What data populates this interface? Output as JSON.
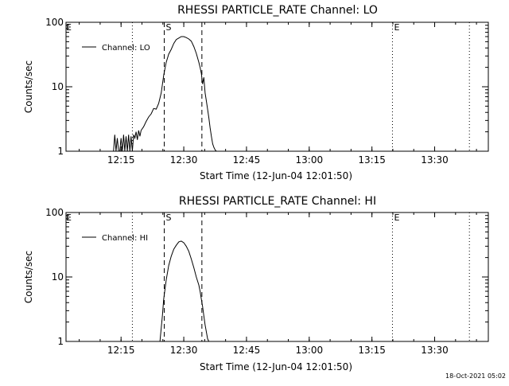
{
  "chart_data": [
    {
      "type": "line",
      "title": "RHESSI PARTICLE_RATE Channel: LO",
      "xlabel": "Start Time (12-Jun-04 12:01:50)",
      "ylabel": "Counts/sec",
      "yscale": "log",
      "ylim": [
        1,
        100
      ],
      "xlim": [
        12.0306,
        13.7139
      ],
      "x_ticks": [
        {
          "v": 12.25,
          "label": "12:15"
        },
        {
          "v": 12.5,
          "label": "12:30"
        },
        {
          "v": 12.75,
          "label": "12:45"
        },
        {
          "v": 13.0,
          "label": "13:00"
        },
        {
          "v": 13.25,
          "label": "13:15"
        },
        {
          "v": 13.5,
          "label": "13:30"
        }
      ],
      "y_ticks": [
        {
          "v": 1,
          "label": "1"
        },
        {
          "v": 10,
          "label": "10"
        },
        {
          "v": 100,
          "label": "100"
        }
      ],
      "legend": {
        "position": "top-left",
        "label": "Channel: LO"
      },
      "markers": [
        {
          "x": 12.2951,
          "style": "dotted",
          "label": ""
        },
        {
          "x": 12.4222,
          "style": "dashed",
          "label": "S"
        },
        {
          "x": 12.5722,
          "style": "dashed",
          "label": ""
        },
        {
          "x": 13.3318,
          "style": "dotted",
          "label": "E"
        },
        {
          "x": 13.6385,
          "style": "dotted",
          "label": ""
        },
        {
          "x": 12.0306,
          "style": "none",
          "label": "E"
        }
      ],
      "series": [
        {
          "name": "Channel: LO",
          "x": [
            12.22,
            12.225,
            12.23,
            12.235,
            12.24,
            12.245,
            12.25,
            12.255,
            12.26,
            12.265,
            12.27,
            12.275,
            12.28,
            12.285,
            12.29,
            12.295,
            12.3,
            12.305,
            12.31,
            12.315,
            12.32,
            12.325,
            12.33,
            12.34,
            12.35,
            12.36,
            12.37,
            12.38,
            12.39,
            12.4,
            12.41,
            12.42,
            12.43,
            12.44,
            12.45,
            12.46,
            12.47,
            12.48,
            12.49,
            12.5,
            12.51,
            12.52,
            12.53,
            12.54,
            12.55,
            12.56,
            12.565,
            12.57,
            12.575,
            12.58,
            12.585,
            12.59,
            12.595,
            12.6,
            12.605,
            12.61,
            12.615,
            12.62,
            12.625,
            12.63
          ],
          "y": [
            1,
            1.8,
            1,
            1.6,
            1,
            1,
            1.6,
            1,
            1.8,
            1,
            1.7,
            1,
            1.8,
            1,
            1.7,
            1,
            1.8,
            1.6,
            2,
            1.5,
            2.1,
            1.7,
            2.1,
            2.4,
            2.9,
            3.4,
            3.8,
            4.6,
            4.5,
            5.5,
            8,
            15,
            24,
            32,
            38,
            47,
            54,
            57,
            60,
            60,
            58,
            55,
            51,
            42,
            33,
            24,
            20,
            16,
            11,
            14,
            8,
            6,
            4.5,
            3.3,
            2.3,
            1.7,
            1.3,
            1.15,
            1.05,
            1
          ]
        }
      ]
    },
    {
      "type": "line",
      "title": "RHESSI PARTICLE_RATE Channel: HI",
      "xlabel": "Start Time (12-Jun-04 12:01:50)",
      "ylabel": "Counts/sec",
      "yscale": "log",
      "ylim": [
        1,
        100
      ],
      "xlim": [
        12.0306,
        13.7139
      ],
      "x_ticks": [
        {
          "v": 12.25,
          "label": "12:15"
        },
        {
          "v": 12.5,
          "label": "12:30"
        },
        {
          "v": 12.75,
          "label": "12:45"
        },
        {
          "v": 13.0,
          "label": "13:00"
        },
        {
          "v": 13.25,
          "label": "13:15"
        },
        {
          "v": 13.5,
          "label": "13:30"
        }
      ],
      "y_ticks": [
        {
          "v": 1,
          "label": "1"
        },
        {
          "v": 10,
          "label": "10"
        },
        {
          "v": 100,
          "label": "100"
        }
      ],
      "legend": {
        "position": "top-left",
        "label": "Channel: HI"
      },
      "markers": [
        {
          "x": 12.2951,
          "style": "dotted",
          "label": ""
        },
        {
          "x": 12.4222,
          "style": "dashed",
          "label": "S"
        },
        {
          "x": 12.5722,
          "style": "dashed",
          "label": ""
        },
        {
          "x": 13.3318,
          "style": "dotted",
          "label": "E"
        },
        {
          "x": 13.6385,
          "style": "dotted",
          "label": ""
        },
        {
          "x": 12.0306,
          "style": "none",
          "label": "E"
        }
      ],
      "series": [
        {
          "name": "Channel: HI",
          "x": [
            12.405,
            12.41,
            12.415,
            12.42,
            12.43,
            12.44,
            12.45,
            12.46,
            12.47,
            12.48,
            12.49,
            12.5,
            12.51,
            12.52,
            12.53,
            12.54,
            12.55,
            12.56,
            12.565,
            12.57,
            12.575,
            12.58,
            12.585,
            12.59,
            12.595,
            12.6
          ],
          "y": [
            1,
            1.6,
            2.6,
            4.5,
            9,
            15,
            21,
            27,
            31,
            35,
            36,
            34,
            30,
            25,
            19,
            14,
            10,
            7.5,
            6,
            4.5,
            3.5,
            2.5,
            1.8,
            1.4,
            1.1,
            1
          ]
        }
      ]
    }
  ],
  "footer": {
    "timestamp": "18-Oct-2021 05:02"
  }
}
